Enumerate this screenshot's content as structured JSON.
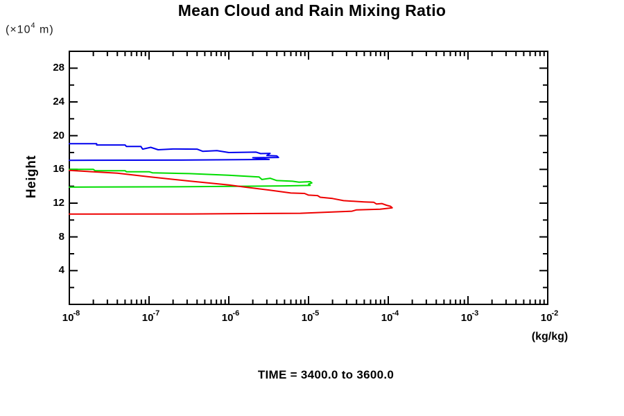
{
  "chart_data": {
    "type": "line",
    "title": "Mean Cloud and Rain Mixing Ratio",
    "caption": "TIME = 3400.0 to 3600.0",
    "legend": "none",
    "grid": false,
    "x_axis": {
      "label": "(kg/kg)",
      "scale": "log",
      "range": [
        1e-08,
        0.01
      ],
      "ticks": [
        {
          "base": "10",
          "exp": "-8"
        },
        {
          "base": "10",
          "exp": "-7"
        },
        {
          "base": "10",
          "exp": "-6"
        },
        {
          "base": "10",
          "exp": "-5"
        },
        {
          "base": "10",
          "exp": "-4"
        },
        {
          "base": "10",
          "exp": "-3"
        },
        {
          "base": "10",
          "exp": "-2"
        }
      ]
    },
    "y_axis": {
      "label": "Height",
      "units_prefix": "(×10",
      "units_exp": "4",
      "units_suffix": " m)",
      "range": [
        0,
        30
      ],
      "major_ticks": [
        4,
        8,
        12,
        16,
        20,
        24,
        28
      ],
      "minor_ticks": [
        2,
        6,
        10,
        14,
        18,
        22,
        26
      ]
    },
    "series": [
      {
        "name": "blue-profile",
        "color": "#0000ee",
        "points": [
          [
            1e-08,
            19.05
          ],
          [
            2.2e-08,
            19.05
          ],
          [
            2.2e-08,
            18.9
          ],
          [
            5e-08,
            18.9
          ],
          [
            5.2e-08,
            18.72
          ],
          [
            7.9e-08,
            18.72
          ],
          [
            8.3e-08,
            18.4
          ],
          [
            1.05e-07,
            18.62
          ],
          [
            1.3e-07,
            18.33
          ],
          [
            2e-07,
            18.42
          ],
          [
            4e-07,
            18.4
          ],
          [
            4.7e-07,
            18.15
          ],
          [
            7.1e-07,
            18.22
          ],
          [
            1e-06,
            18.0
          ],
          [
            2.2e-06,
            18.05
          ],
          [
            2.5e-06,
            17.88
          ],
          [
            3.3e-06,
            17.9
          ],
          [
            3e-06,
            17.65
          ],
          [
            4e-06,
            17.6
          ],
          [
            4.2e-06,
            17.42
          ],
          [
            2e-06,
            17.38
          ],
          [
            3.2e-06,
            17.18
          ],
          [
            2.5e-07,
            17.1
          ],
          [
            1e-08,
            17.08
          ]
        ]
      },
      {
        "name": "green-profile",
        "color": "#00dd00",
        "points": [
          [
            1e-08,
            16.0
          ],
          [
            2e-08,
            16.0
          ],
          [
            2.1e-08,
            15.85
          ],
          [
            5e-08,
            15.85
          ],
          [
            5.2e-08,
            15.72
          ],
          [
            1e-07,
            15.72
          ],
          [
            1.1e-07,
            15.6
          ],
          [
            3.2e-07,
            15.5
          ],
          [
            1e-06,
            15.3
          ],
          [
            2.4e-06,
            15.1
          ],
          [
            2.6e-06,
            14.8
          ],
          [
            3.3e-06,
            14.95
          ],
          [
            4e-06,
            14.68
          ],
          [
            6.3e-06,
            14.6
          ],
          [
            7.6e-06,
            14.48
          ],
          [
            1.05e-05,
            14.55
          ],
          [
            1.1e-05,
            14.4
          ],
          [
            1e-05,
            14.25
          ],
          [
            1.05e-05,
            14.1
          ],
          [
            5e-06,
            14.05
          ],
          [
            3.2e-07,
            13.95
          ],
          [
            1e-08,
            13.9
          ]
        ]
      },
      {
        "name": "red-profile",
        "color": "#ee0000",
        "points": [
          [
            1e-08,
            15.88
          ],
          [
            4e-08,
            15.55
          ],
          [
            1e-07,
            15.12
          ],
          [
            3.2e-07,
            14.62
          ],
          [
            1e-06,
            14.15
          ],
          [
            1.6e-06,
            13.9
          ],
          [
            3.2e-06,
            13.55
          ],
          [
            6e-06,
            13.2
          ],
          [
            8.9e-06,
            13.15
          ],
          [
            1e-05,
            12.95
          ],
          [
            1.3e-05,
            12.9
          ],
          [
            1.4e-05,
            12.7
          ],
          [
            2e-05,
            12.55
          ],
          [
            2.75e-05,
            12.3
          ],
          [
            5e-05,
            12.15
          ],
          [
            6.6e-05,
            12.1
          ],
          [
            7.1e-05,
            11.9
          ],
          [
            8.3e-05,
            11.95
          ],
          [
            9.5e-05,
            11.75
          ],
          [
            0.000107,
            11.62
          ],
          [
            0.000112,
            11.45
          ],
          [
            7.9e-05,
            11.28
          ],
          [
            4e-05,
            11.2
          ],
          [
            3.5e-05,
            11.05
          ],
          [
            2e-05,
            10.95
          ],
          [
            7.9e-06,
            10.8
          ],
          [
            3.2e-07,
            10.72
          ],
          [
            1e-08,
            10.7
          ]
        ]
      }
    ]
  }
}
